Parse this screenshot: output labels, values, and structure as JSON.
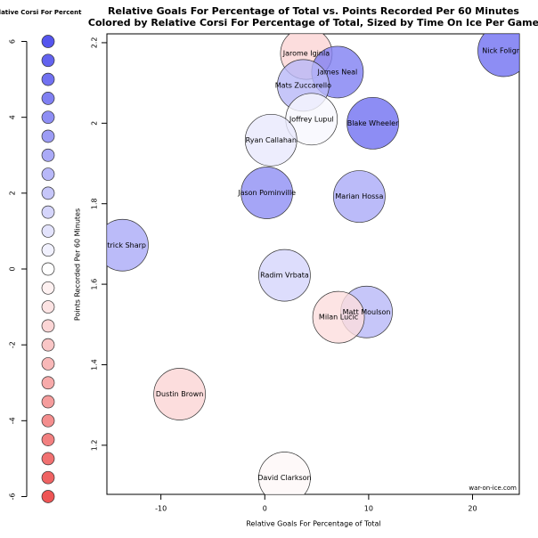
{
  "chart_data": {
    "type": "bubble",
    "title": "Relative Goals For Percentage of Total vs. Points Recorded Per 60 Minutes",
    "subtitle": "Colored by Relative Corsi For Percentage of Total, Sized by Time On Ice Per Game",
    "x_label": "Relative Goals For Percentage of Total",
    "y_label": "Points Recorded Per 60 Minutes",
    "watermark": "war-on-ice.com",
    "xlim": [
      -15.2,
      24.5
    ],
    "ylim": [
      1.078,
      2.222
    ],
    "xticks": [
      -10,
      0,
      10,
      20
    ],
    "yticks": [
      1.2,
      1.4,
      1.6,
      1.8,
      2.0,
      2.2
    ],
    "labels": [
      "Jarome Iginla",
      "James Neal",
      "Mats Zuccarello",
      "Nick Foligno",
      "Joffrey Lupul",
      "Blake Wheeler",
      "Ryan Callahan",
      "Jason Pominville",
      "Marian Hossa",
      "Patrick Sharp",
      "Radim Vrbata",
      "Matt Moulson",
      "Milan Lucic",
      "Dustin Brown",
      "David Clarkson"
    ],
    "x": [
      4.0,
      7.0,
      3.7,
      23.0,
      4.5,
      10.4,
      0.6,
      0.2,
      9.1,
      -13.7,
      1.9,
      9.8,
      7.1,
      -8.2,
      1.9
    ],
    "y": [
      2.173,
      2.127,
      2.094,
      2.18,
      2.01,
      2.0,
      1.958,
      1.827,
      1.818,
      1.697,
      1.622,
      1.531,
      1.518,
      1.327,
      1.119
    ],
    "color_values": [
      -1.5,
      4.5,
      2.5,
      5,
      0.3,
      5,
      0.8,
      4,
      3,
      3,
      1.5,
      2.5,
      -1.2,
      -1.5,
      -0.3
    ],
    "high_color": "#5555ee",
    "low_color": "#ee5555",
    "legend": {
      "title": "Relative Corsi For Percent",
      "ylim": [
        -6.2,
        6.2
      ],
      "yticks": [
        -6,
        -4,
        -2,
        0,
        2,
        4,
        6
      ],
      "values": [
        6,
        5.5,
        5,
        4.5,
        4,
        3.5,
        3,
        2.5,
        2,
        1.5,
        1,
        0.5,
        0,
        -0.5,
        -1,
        -1.5,
        -2,
        -2.5,
        -3,
        -3.5,
        -4,
        -4.5,
        -5,
        -5.5,
        -6
      ]
    }
  }
}
